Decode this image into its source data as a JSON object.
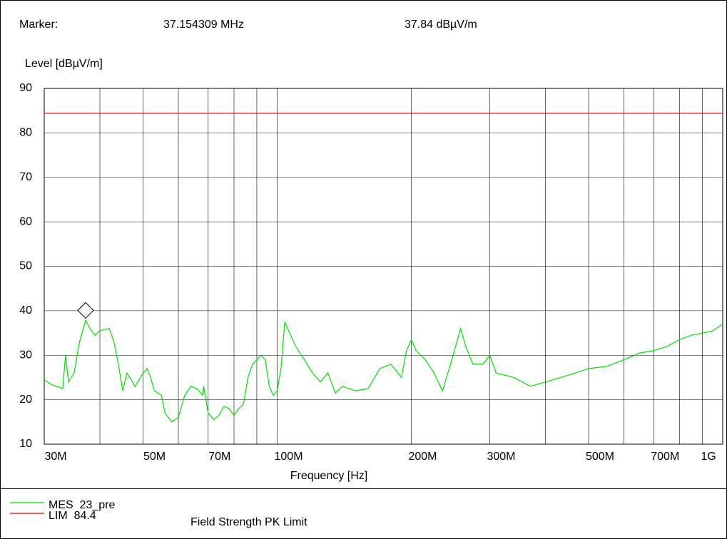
{
  "chart_data": {
    "type": "line",
    "marker": {
      "label": "Marker:",
      "frequency_label": "37.154309 MHz",
      "level_label": "37.84 dBµV/m",
      "x": 37154309,
      "y": 37.84
    },
    "y_label": "Level [dBµV/m]",
    "x_label": "Frequency [Hz]",
    "log_x": true,
    "grid": true,
    "xlim": [
      30000000.0,
      1000000000.0
    ],
    "xticks": [
      {
        "value": 30000000.0,
        "label": "30M"
      },
      {
        "value": 50000000.0,
        "label": "50M"
      },
      {
        "value": 70000000.0,
        "label": "70M"
      },
      {
        "value": 100000000.0,
        "label": "100M"
      },
      {
        "value": 200000000.0,
        "label": "200M"
      },
      {
        "value": 300000000.0,
        "label": "300M"
      },
      {
        "value": 500000000.0,
        "label": "500M"
      },
      {
        "value": 700000000.0,
        "label": "700M"
      },
      {
        "value": 1000000000.0,
        "label": "1G"
      }
    ],
    "xminor": [
      40000000.0,
      60000000.0,
      80000000.0,
      90000000.0,
      400000000.0,
      600000000.0,
      800000000.0,
      900000000.0
    ],
    "ylim": [
      10,
      90
    ],
    "yticks": [
      10,
      20,
      30,
      40,
      50,
      60,
      70,
      80,
      90
    ],
    "series": [
      {
        "name": "MES  23_pre",
        "color": "#00e000",
        "x": [
          30000000.0,
          31000000.0,
          32000000.0,
          33000000.0,
          33500000.0,
          34000000.0,
          35000000.0,
          36000000.0,
          37154309.0,
          38000000.0,
          39000000.0,
          40000000.0,
          42000000.0,
          43000000.0,
          44000000.0,
          45000000.0,
          46000000.0,
          48000000.0,
          50000000.0,
          51000000.0,
          52000000.0,
          53000000.0,
          55000000.0,
          56000000.0,
          58000000.0,
          60000000.0,
          62000000.0,
          64000000.0,
          66000000.0,
          68000000.0,
          68400000.0,
          70000000.0,
          72000000.0,
          74000000.0,
          76000000.0,
          78000000.0,
          80000000.0,
          82000000.0,
          84000000.0,
          86000000.0,
          88000000.0,
          90000000.0,
          92000000.0,
          94000000.0,
          96000000.0,
          98000000.0,
          100000000.0,
          102000000.0,
          104000000.0,
          110000000.0,
          115000000.0,
          120000000.0,
          125000000.0,
          130000000.0,
          135000000.0,
          140000000.0,
          150000000.0,
          160000000.0,
          170000000.0,
          180000000.0,
          190000000.0,
          195000000.0,
          200000000.0,
          205000000.0,
          215000000.0,
          225000000.0,
          235000000.0,
          245000000.0,
          258000000.0,
          265000000.0,
          275000000.0,
          290000000.0,
          300000000.0,
          310000000.0,
          340000000.0,
          370000000.0,
          400000000.0,
          450000000.0,
          500000000.0,
          550000000.0,
          600000000.0,
          650000000.0,
          700000000.0,
          750000000.0,
          800000000.0,
          850000000.0,
          900000000.0,
          950000000.0,
          1000000000.0
        ],
        "values": [
          24.5,
          23.5,
          23,
          22.5,
          30,
          24,
          26,
          33,
          37.84,
          36,
          34.5,
          35.5,
          36,
          33,
          28,
          22,
          26,
          23,
          26,
          27,
          25,
          22,
          21,
          17,
          15,
          16,
          21,
          23,
          22.5,
          21,
          23,
          17,
          15.5,
          16.5,
          18.5,
          18,
          16.5,
          18,
          19,
          25,
          28,
          29,
          30,
          29,
          23,
          21,
          22,
          27,
          37.5,
          32,
          29,
          26,
          24,
          26,
          21.5,
          23,
          22,
          22.5,
          27,
          28,
          25,
          31,
          33.5,
          31,
          29,
          26,
          22,
          28,
          36,
          32,
          28,
          28,
          30,
          26,
          25,
          23,
          24,
          25.5,
          27,
          27.5,
          29,
          30.5,
          31,
          32,
          33.5,
          34.5,
          35,
          35.5,
          37
        ]
      },
      {
        "name": "LIM  84.4",
        "color": "#e00000",
        "value": 84.4,
        "description": "Field Strength PK Limit"
      }
    ]
  }
}
